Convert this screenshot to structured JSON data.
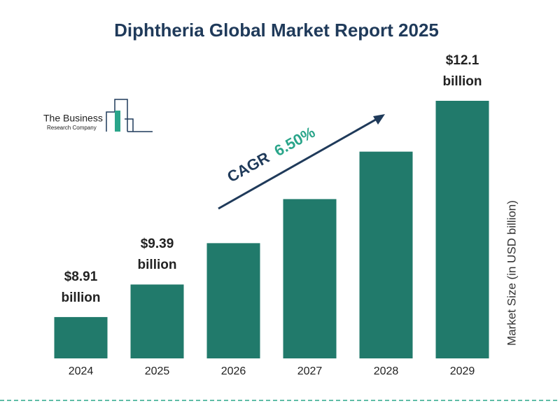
{
  "chart_data": {
    "type": "bar",
    "title": "Diphtheria Global Market Report 2025",
    "categories": [
      "2024",
      "2025",
      "2026",
      "2027",
      "2028",
      "2029"
    ],
    "values": [
      8.91,
      9.39,
      10.0,
      10.65,
      11.35,
      12.1
    ],
    "value_labels": [
      "$8.91 billion",
      "$9.39 billion",
      null,
      null,
      null,
      "$12.1 billion"
    ],
    "color": "#217a6b",
    "ylim": [
      8.3,
      12.1
    ],
    "ylabel": "Market Size (in USD billion)",
    "annotation": {
      "label": "CAGR",
      "value": "6.50%"
    },
    "logo": {
      "line1": "The Business",
      "line2": "Research Company"
    }
  }
}
